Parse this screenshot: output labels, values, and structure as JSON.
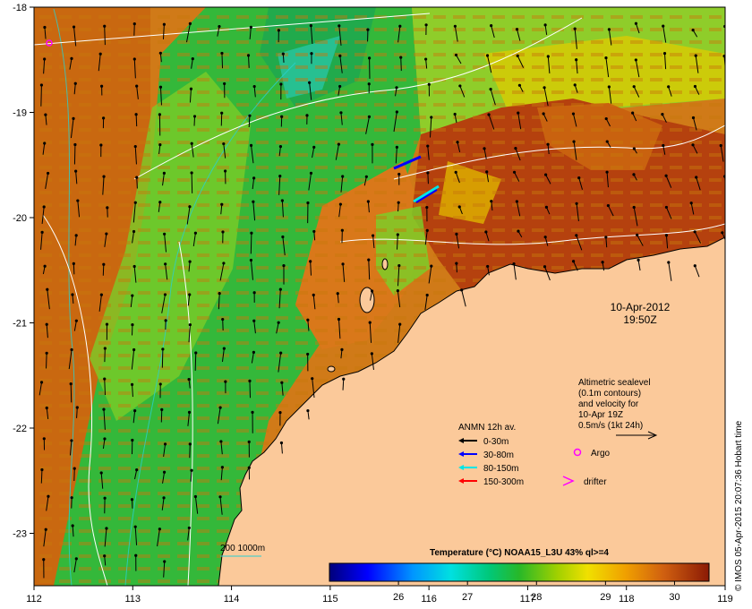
{
  "map": {
    "date": "10-Apr-2012",
    "time": "19:50Z",
    "x_ticks": [
      "112",
      "113",
      "114",
      "115",
      "116",
      "117",
      "118",
      "119"
    ],
    "y_ticks": [
      "-18",
      "-19",
      "-20",
      "-21",
      "-22",
      "-23"
    ],
    "altimetry_note": [
      "Altimetric sealevel",
      "(0.1m contours)",
      "and velocity for",
      "10-Apr 19Z",
      "0.5m/s (1kt 24h)"
    ],
    "legend": {
      "title": "ANMN 12h av.",
      "items": [
        {
          "label": "0-30m",
          "color": "#000000"
        },
        {
          "label": "30-80m",
          "color": "#0000ff"
        },
        {
          "label": "80-150m",
          "color": "#00e5e5"
        },
        {
          "label": "150-300m",
          "color": "#ff0000"
        }
      ],
      "argo_label": "Argo",
      "drifter_label": "drifter",
      "argo_color": "#ff00ff"
    },
    "isobath_label": "200  1000m",
    "colorbar": {
      "title": "Temperature (°C) NOAA15_L3U 43% ql>=4",
      "ticks": [
        "26",
        "27",
        "28",
        "29",
        "30"
      ],
      "range": [
        25,
        30.5
      ]
    },
    "credit": "© IMOS 05-Apr-2015 20:07:36 Hobart time",
    "colors": {
      "land": "#fbc99a",
      "warm": "#b8420c",
      "green": "#39c13a",
      "yellow": "#e4d000"
    }
  }
}
